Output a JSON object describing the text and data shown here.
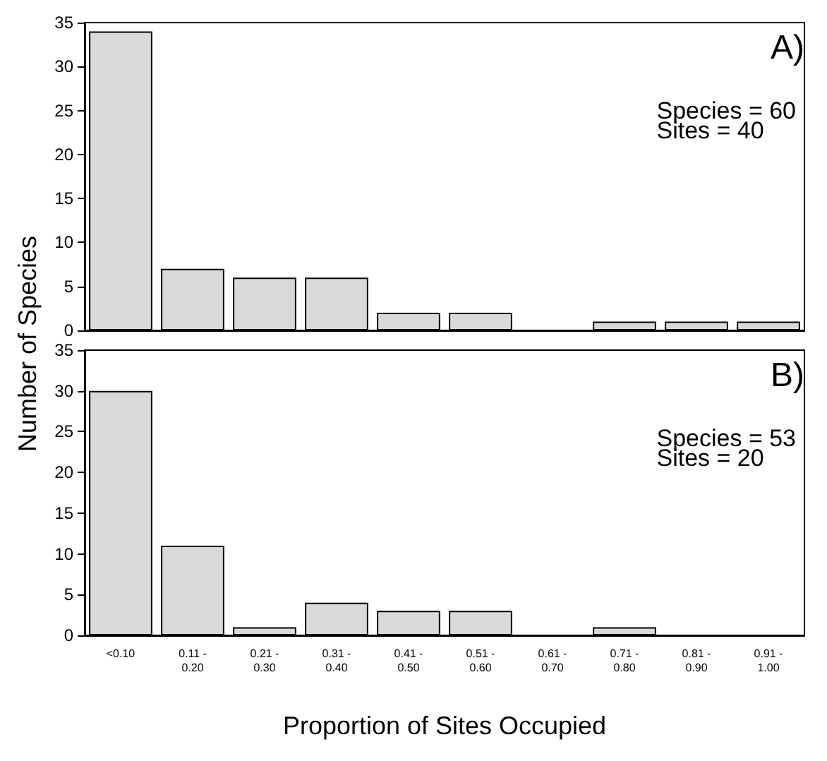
{
  "chart_data": [
    {
      "type": "bar",
      "ylabel": "Number of Species",
      "categories": [
        null,
        null,
        null,
        null,
        null,
        null,
        null,
        null,
        null,
        null
      ],
      "values": [
        34,
        7,
        6,
        6,
        2,
        2,
        0,
        1,
        1,
        1
      ],
      "color": "#d9d9d9",
      "ylim": [
        0,
        35
      ],
      "yticks": [
        0,
        5,
        10,
        15,
        20,
        25,
        30,
        35
      ],
      "grid": false,
      "tick_labels": "y",
      "annotations": [
        "A)",
        "Species = 60\nSites = 40"
      ]
    },
    {
      "type": "bar",
      "xlabel": "Proportion of Sites Occupied",
      "categories": [
        "<0.10",
        "0.11 -\n0.20",
        "0.21 -\n0.30",
        "0.31 -\n0.40",
        "0.41 -\n0.50",
        "0.51 -\n0.60",
        "0.61 -\n0.70",
        "0.71 -\n0.80",
        "0.81 -\n0.90",
        "0.91 -\n1.00"
      ],
      "values": [
        30,
        11,
        1,
        4,
        3,
        3,
        0,
        1,
        0,
        0
      ],
      "color": "#d9d9d9",
      "ylim": [
        0,
        35
      ],
      "yticks": [
        0,
        5,
        10,
        15,
        20,
        25,
        30,
        35
      ],
      "grid": false,
      "annotations": [
        "B)",
        "Species = 53\nSites = 20"
      ]
    }
  ]
}
